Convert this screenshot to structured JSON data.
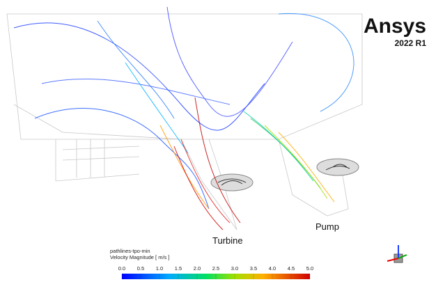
{
  "logo": {
    "brand": "Ansys",
    "version": "2022 R1"
  },
  "labels": {
    "turbine": "Turbine",
    "pump": "Pump"
  },
  "legend": {
    "name": "pathlines-tpo-min",
    "quantity": "Velocity Magnitude [ m/s ]",
    "range": [
      0,
      5
    ],
    "ticks": [
      {
        "value": 0,
        "label": "0.0"
      },
      {
        "value": 0.5,
        "label": "0.5"
      },
      {
        "value": 1,
        "label": "1.0"
      },
      {
        "value": 1.5,
        "label": "1.5"
      },
      {
        "value": 2,
        "label": "2.0"
      },
      {
        "value": 2.5,
        "label": "2.5"
      },
      {
        "value": 3,
        "label": "3.0"
      },
      {
        "value": 3.5,
        "label": "3.5"
      },
      {
        "value": 4,
        "label": "4.0"
      },
      {
        "value": 4.5,
        "label": "4.5"
      },
      {
        "value": 5,
        "label": "5.0"
      }
    ]
  }
}
